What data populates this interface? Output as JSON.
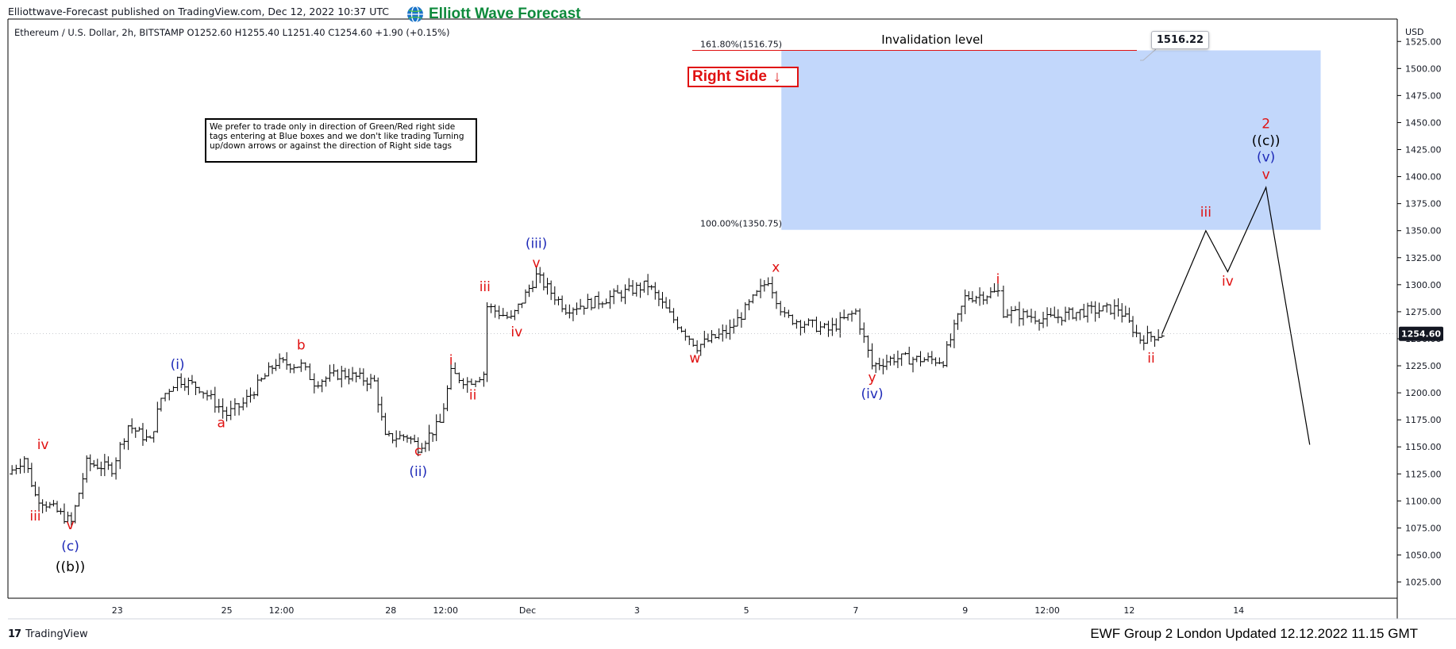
{
  "header": {
    "published": "Elliottwave-Forecast published on TradingView.com, Dec 12, 2022 10:37 UTC",
    "brand": "Elliott Wave Forecast",
    "symbol_line": "Ethereum / U.S. Dollar, 2h, BITSTAMP  O1252.60  H1255.40  L1251.40  C1254.60  +1.90 (+0.15%)"
  },
  "footer": {
    "tradingview": "TradingView",
    "update_text": "EWF Group 2 London Updated 12.12.2022 11.15 GMT"
  },
  "note_box": {
    "text": "We prefer to trade only in direction of Green/Red right side tags entering at Blue boxes and we don't like trading Turning up/down arrows or against the direction of Right side tags"
  },
  "right_side_tag": {
    "label": "Right Side",
    "arrow": "↓"
  },
  "callout": {
    "value": "1516.22"
  },
  "colors": {
    "wave_red": "#e01111",
    "wave_blue": "#1f2bb8",
    "wave_black": "#000000",
    "box_blue": "#c2d7fb",
    "brand_green": "#0e8a3c",
    "line_red": "#e01111"
  },
  "chart_data": {
    "type": "line",
    "chart_style": "ohlc-bars",
    "currency": "USD",
    "ylim": [
      1010,
      1545
    ],
    "y_ticks": [
      1025,
      1050,
      1075,
      1100,
      1125,
      1150,
      1175,
      1200,
      1225,
      1250,
      1275,
      1300,
      1325,
      1350,
      1375,
      1400,
      1425,
      1450,
      1475,
      1500,
      1525
    ],
    "x_range": [
      0,
      12.7
    ],
    "x_ticks": [
      {
        "label": "23",
        "x": 1.0
      },
      {
        "label": "25",
        "x": 2.0
      },
      {
        "label": "12:00",
        "x": 2.5
      },
      {
        "label": "28",
        "x": 3.5
      },
      {
        "label": "12:00",
        "x": 4.0
      },
      {
        "label": "Dec",
        "x": 4.75
      },
      {
        "label": "3",
        "x": 5.75
      },
      {
        "label": "5",
        "x": 6.75
      },
      {
        "label": "7",
        "x": 7.75
      },
      {
        "label": "9",
        "x": 8.75
      },
      {
        "label": "12:00",
        "x": 9.5
      },
      {
        "label": "12",
        "x": 10.25
      },
      {
        "label": "14",
        "x": 11.25
      }
    ],
    "last_price": 1254.6,
    "price_path": [
      [
        0.0,
        1125
      ],
      [
        0.15,
        1140
      ],
      [
        0.25,
        1105
      ],
      [
        0.45,
        1090
      ],
      [
        0.58,
        1080
      ],
      [
        0.72,
        1135
      ],
      [
        0.95,
        1130
      ],
      [
        1.1,
        1170
      ],
      [
        1.3,
        1155
      ],
      [
        1.4,
        1195
      ],
      [
        1.55,
        1213
      ],
      [
        1.75,
        1205
      ],
      [
        2.0,
        1180
      ],
      [
        2.15,
        1190
      ],
      [
        2.45,
        1228
      ],
      [
        2.68,
        1225
      ],
      [
        2.8,
        1210
      ],
      [
        3.05,
        1218
      ],
      [
        3.35,
        1210
      ],
      [
        3.45,
        1158
      ],
      [
        3.65,
        1160
      ],
      [
        3.75,
        1150
      ],
      [
        3.95,
        1172
      ],
      [
        4.05,
        1218
      ],
      [
        4.2,
        1210
      ],
      [
        4.35,
        1218
      ],
      [
        4.38,
        1280
      ],
      [
        4.6,
        1268
      ],
      [
        4.83,
        1308
      ],
      [
        5.1,
        1278
      ],
      [
        5.4,
        1285
      ],
      [
        5.85,
        1300
      ],
      [
        6.05,
        1272
      ],
      [
        6.3,
        1243
      ],
      [
        6.6,
        1258
      ],
      [
        6.95,
        1305
      ],
      [
        7.1,
        1270
      ],
      [
        7.5,
        1258
      ],
      [
        7.75,
        1275
      ],
      [
        7.9,
        1225
      ],
      [
        8.1,
        1232
      ],
      [
        8.55,
        1230
      ],
      [
        8.75,
        1288
      ],
      [
        9.05,
        1293
      ],
      [
        9.1,
        1275
      ],
      [
        9.5,
        1268
      ],
      [
        9.8,
        1275
      ],
      [
        10.15,
        1278
      ],
      [
        10.35,
        1250
      ],
      [
        10.55,
        1254.6
      ]
    ],
    "projection": [
      [
        10.55,
        1254.6
      ],
      [
        10.95,
        1350
      ],
      [
        11.15,
        1312
      ],
      [
        11.5,
        1390
      ],
      [
        11.9,
        1152
      ]
    ],
    "levels": [
      {
        "label": "161.80%(1516.75)",
        "value": 1516.75
      },
      {
        "label": "100.00%(1350.75)",
        "value": 1350.75
      }
    ],
    "blue_box": {
      "x0": 7.07,
      "x1": 12.0,
      "y0": 1350.75,
      "y1": 1516.75
    },
    "annotations": [
      {
        "text": "Invalidation level",
        "x": 8.45,
        "y": 1523,
        "color": "black"
      },
      {
        "text": "iii",
        "x": 0.25,
        "y": 1082,
        "color": "red"
      },
      {
        "text": "iv",
        "x": 0.32,
        "y": 1148,
        "color": "red"
      },
      {
        "text": "v",
        "x": 0.57,
        "y": 1074,
        "color": "red"
      },
      {
        "text": "(c)",
        "x": 0.57,
        "y": 1054,
        "color": "blue"
      },
      {
        "text": "((b))",
        "x": 0.57,
        "y": 1035,
        "color": "black"
      },
      {
        "text": "(i)",
        "x": 1.55,
        "y": 1222,
        "color": "blue"
      },
      {
        "text": "a",
        "x": 1.95,
        "y": 1168,
        "color": "red"
      },
      {
        "text": "b",
        "x": 2.68,
        "y": 1240,
        "color": "red"
      },
      {
        "text": "c",
        "x": 3.75,
        "y": 1142,
        "color": "red"
      },
      {
        "text": "(ii)",
        "x": 3.75,
        "y": 1123,
        "color": "blue"
      },
      {
        "text": "i",
        "x": 4.05,
        "y": 1226,
        "color": "red"
      },
      {
        "text": "ii",
        "x": 4.25,
        "y": 1194,
        "color": "red"
      },
      {
        "text": "iii",
        "x": 4.36,
        "y": 1294,
        "color": "red"
      },
      {
        "text": "iv",
        "x": 4.65,
        "y": 1252,
        "color": "red"
      },
      {
        "text": "v",
        "x": 4.83,
        "y": 1316,
        "color": "red"
      },
      {
        "text": "(iii)",
        "x": 4.83,
        "y": 1334,
        "color": "blue"
      },
      {
        "text": "w",
        "x": 6.28,
        "y": 1228,
        "color": "red"
      },
      {
        "text": "x",
        "x": 7.02,
        "y": 1312,
        "color": "red"
      },
      {
        "text": "y",
        "x": 7.9,
        "y": 1210,
        "color": "red"
      },
      {
        "text": "(iv)",
        "x": 7.9,
        "y": 1195,
        "color": "blue"
      },
      {
        "text": "i",
        "x": 9.05,
        "y": 1301,
        "color": "red"
      },
      {
        "text": "ii",
        "x": 10.45,
        "y": 1228,
        "color": "red"
      },
      {
        "text": "iii",
        "x": 10.95,
        "y": 1363,
        "color": "red"
      },
      {
        "text": "iv",
        "x": 11.15,
        "y": 1299,
        "color": "red"
      },
      {
        "text": "v",
        "x": 11.5,
        "y": 1398,
        "color": "red"
      },
      {
        "text": "(v)",
        "x": 11.5,
        "y": 1414,
        "color": "blue"
      },
      {
        "text": "((c))",
        "x": 11.5,
        "y": 1429,
        "color": "black"
      },
      {
        "text": "2",
        "x": 11.5,
        "y": 1445,
        "color": "red"
      }
    ]
  }
}
